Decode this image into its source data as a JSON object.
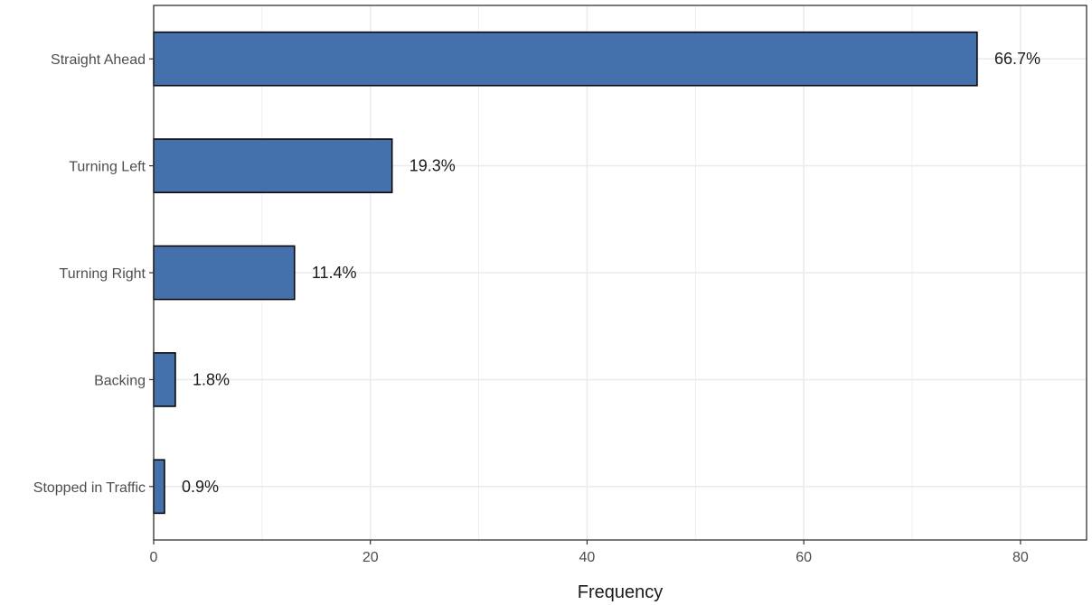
{
  "chart_data": {
    "type": "bar",
    "orientation": "horizontal",
    "categories": [
      "Straight Ahead",
      "Turning Left",
      "Turning Right",
      "Backing",
      "Stopped in Traffic"
    ],
    "values": [
      76,
      22,
      13,
      2,
      1
    ],
    "data_labels": [
      "66.7%",
      "19.3%",
      "11.4%",
      "1.8%",
      "0.9%"
    ],
    "xlabel": "Frequency",
    "ylabel": "",
    "xlim": [
      0,
      86.1
    ],
    "x_ticks": [
      0,
      20,
      40,
      60,
      80
    ],
    "grid": true,
    "colors": {
      "bar_fill": "#4470ab",
      "bar_stroke": "#000000",
      "grid": "#ebebeb",
      "panel_border": "#333333"
    }
  }
}
